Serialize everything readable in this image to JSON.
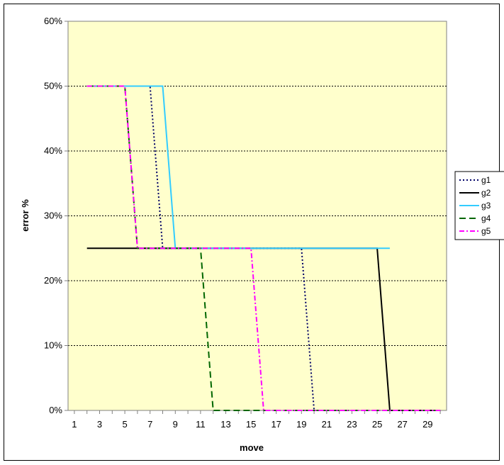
{
  "chart_data": {
    "type": "line",
    "xlabel": "move",
    "ylabel": "error %",
    "xlim": [
      0.5,
      30.5
    ],
    "ylim": [
      0,
      60
    ],
    "x_tick_labels": [
      "1",
      "3",
      "5",
      "7",
      "9",
      "11",
      "13",
      "15",
      "17",
      "19",
      "21",
      "23",
      "25",
      "27",
      "29"
    ],
    "y_tick_labels": [
      "0%",
      "10%",
      "20%",
      "30%",
      "40%",
      "50%",
      "60%"
    ],
    "y_ticks": [
      0,
      10,
      20,
      30,
      40,
      50,
      60
    ],
    "grid": "horizontal dotted",
    "plot_background": "#ffffcc",
    "legend_position": "right",
    "series": [
      {
        "name": "g1",
        "color": "#000066",
        "dash": "dotted",
        "x": [
          2,
          3,
          4,
          5,
          6,
          7,
          8,
          9,
          10,
          11,
          12,
          13,
          14,
          15,
          16,
          17,
          18,
          19,
          20,
          21,
          22,
          23,
          24,
          25,
          26,
          27,
          28,
          29,
          30
        ],
        "y": [
          50,
          50,
          50,
          50,
          50,
          50,
          25,
          25,
          25,
          25,
          25,
          25,
          25,
          25,
          25,
          25,
          25,
          25,
          0,
          0,
          0,
          0,
          0,
          0,
          0,
          0,
          0,
          0,
          0
        ]
      },
      {
        "name": "g2",
        "color": "#000000",
        "dash": "solid",
        "x": [
          2,
          3,
          4,
          5,
          6,
          7,
          8,
          9,
          10,
          11,
          12,
          13,
          14,
          15,
          16,
          17,
          18,
          19,
          20,
          21,
          22,
          23,
          24,
          25,
          26,
          27,
          28,
          29,
          30
        ],
        "y": [
          25,
          25,
          25,
          25,
          25,
          25,
          25,
          25,
          25,
          25,
          25,
          25,
          25,
          25,
          25,
          25,
          25,
          25,
          25,
          25,
          25,
          25,
          25,
          25,
          0,
          0,
          0,
          0,
          0
        ]
      },
      {
        "name": "g3",
        "color": "#33ccff",
        "dash": "solid",
        "x": [
          2,
          3,
          4,
          5,
          6,
          7,
          8,
          9,
          10,
          11,
          12,
          13,
          14,
          15,
          16,
          17,
          18,
          19,
          20,
          21,
          22,
          23,
          24,
          25,
          26
        ],
        "y": [
          50,
          50,
          50,
          50,
          50,
          50,
          50,
          25,
          25,
          25,
          25,
          25,
          25,
          25,
          25,
          25,
          25,
          25,
          25,
          25,
          25,
          25,
          25,
          25,
          25
        ]
      },
      {
        "name": "g4",
        "color": "#006600",
        "dash": "dashed",
        "x": [
          2,
          3,
          4,
          5,
          6,
          7,
          8,
          9,
          10,
          11,
          12,
          13,
          14,
          15,
          16,
          17,
          18,
          19,
          20,
          21,
          22,
          23,
          24,
          25,
          26,
          27,
          28,
          29,
          30
        ],
        "y": [
          50,
          50,
          50,
          50,
          25,
          25,
          25,
          25,
          25,
          25,
          0,
          0,
          0,
          0,
          0,
          0,
          0,
          0,
          0,
          0,
          0,
          0,
          0,
          0,
          0,
          0,
          0,
          0,
          0
        ]
      },
      {
        "name": "g5",
        "color": "#ff00ff",
        "dash": "dashdot",
        "x": [
          2,
          3,
          4,
          5,
          6,
          7,
          8,
          9,
          10,
          11,
          12,
          13,
          14,
          15,
          16,
          17,
          18,
          19,
          20,
          21,
          22,
          23,
          24,
          25,
          26,
          27,
          28,
          29,
          30
        ],
        "y": [
          50,
          50,
          50,
          50,
          25,
          25,
          25,
          25,
          25,
          25,
          25,
          25,
          25,
          25,
          0,
          0,
          0,
          0,
          0,
          0,
          0,
          0,
          0,
          0,
          0,
          0,
          0,
          0,
          0
        ]
      }
    ]
  }
}
